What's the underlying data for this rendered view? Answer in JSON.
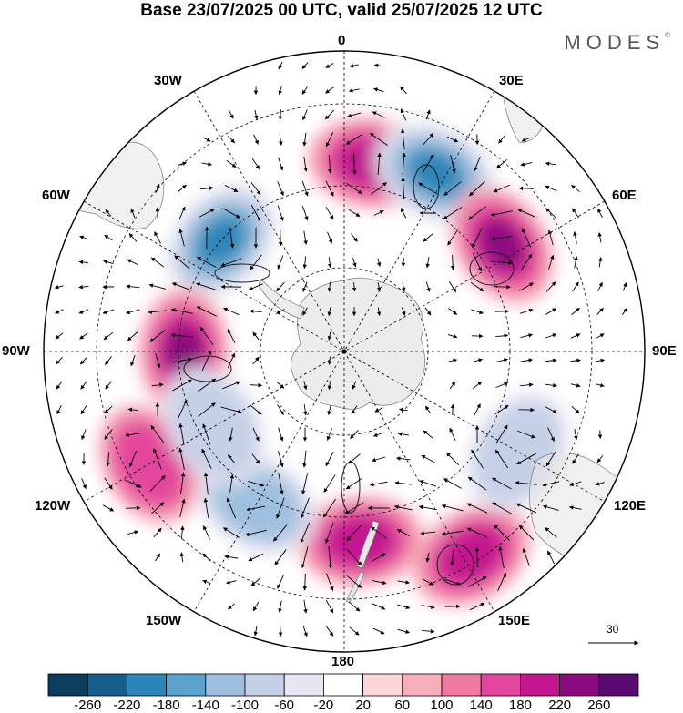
{
  "title": "Base 23/07/2025 00 UTC, valid 25/07/2025 12 UTC",
  "brand": "MODES",
  "brand_mark": "©",
  "longitude_labels": {
    "lon_0": "0",
    "lon_30e": "30E",
    "lon_60e": "60E",
    "lon_90e": "90E",
    "lon_120e": "120E",
    "lon_150e": "150E",
    "lon_180": "180",
    "lon_150w": "150W",
    "lon_120w": "120W",
    "lon_90w": "90W",
    "lon_60w": "60W",
    "lon_30w": "30W"
  },
  "vector_scale_label": "30",
  "colorbar": {
    "ticks": [
      "-260",
      "-220",
      "-180",
      "-140",
      "-100",
      "-60",
      "-20",
      "20",
      "60",
      "100",
      "140",
      "180",
      "220",
      "260"
    ],
    "colors": [
      "#0d3d5c",
      "#165f8c",
      "#2a85b8",
      "#5aa2cc",
      "#9ec0de",
      "#c5cfe6",
      "#e6e6f2",
      "#ffffff",
      "#fbd7d8",
      "#f7b0bb",
      "#f07aa4",
      "#e3479c",
      "#c4168f",
      "#8a0b7e",
      "#5a0a6f"
    ]
  },
  "anomaly_centers": [
    {
      "lon": -48,
      "lat": -57,
      "value": -200,
      "kind": "negative"
    },
    {
      "lon": 8,
      "lat": -52,
      "value": 180,
      "kind": "positive"
    },
    {
      "lon": 27,
      "lat": -50,
      "value": -220,
      "kind": "negative"
    },
    {
      "lon": 56,
      "lat": -52,
      "value": 220,
      "kind": "positive"
    },
    {
      "lon": -90,
      "lat": -58,
      "value": 220,
      "kind": "positive"
    },
    {
      "lon": 175,
      "lat": -52,
      "value": 180,
      "kind": "positive"
    },
    {
      "lon": 148,
      "lat": -42,
      "value": 180,
      "kind": "positive"
    },
    {
      "lon": 120,
      "lat": -50,
      "value": -100,
      "kind": "negative"
    },
    {
      "lon": -150,
      "lat": -55,
      "value": -120,
      "kind": "negative"
    },
    {
      "lon": -120,
      "lat": -45,
      "value": 120,
      "kind": "positive"
    },
    {
      "lon": -120,
      "lat": -60,
      "value": -80,
      "kind": "negative"
    }
  ]
}
